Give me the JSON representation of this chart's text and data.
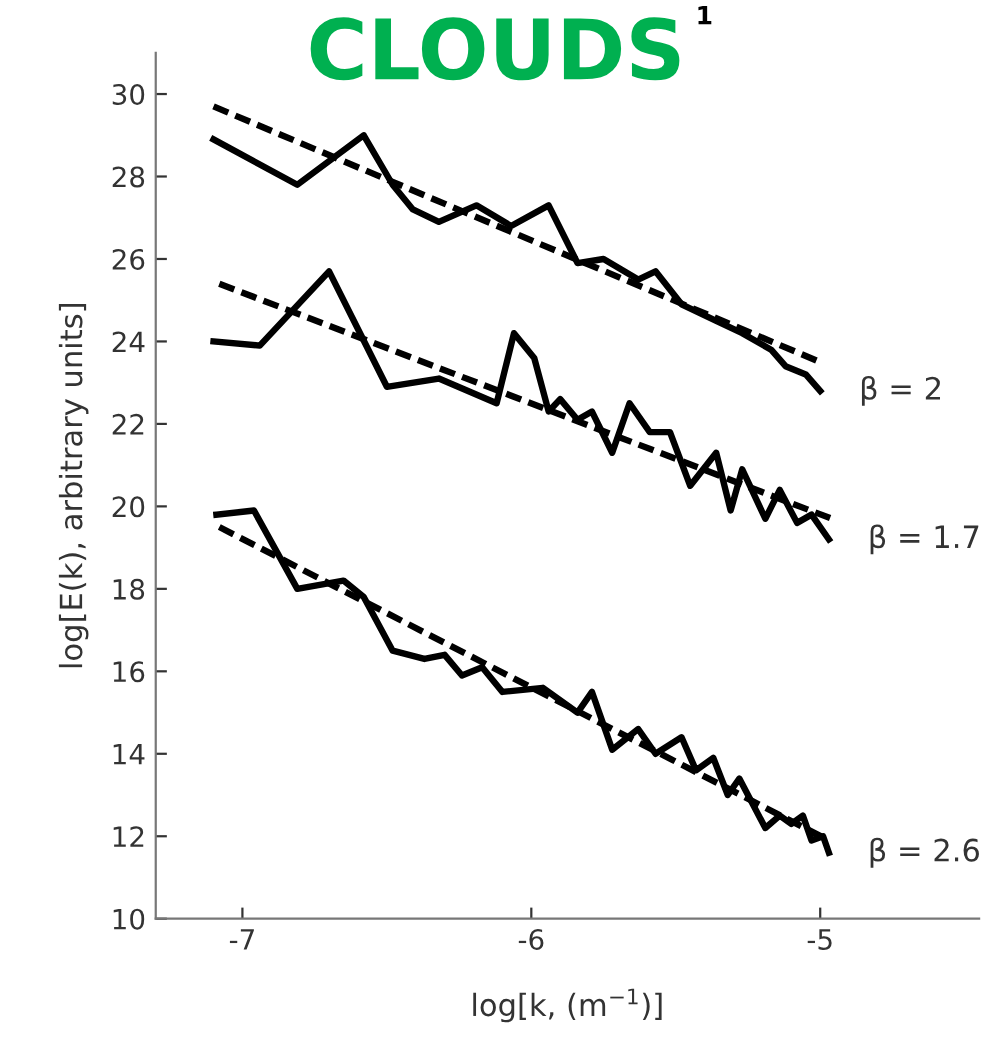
{
  "chart_data": {
    "type": "line",
    "title": "CLOUDS",
    "xlabel": "log[k, (m$^{−1}$)]",
    "ylabel": "log[E(k), arbitrary units]",
    "xlim": [
      -7.3,
      -4.45
    ],
    "ylim": [
      10,
      31
    ],
    "xticks": [
      -7,
      -6,
      -5
    ],
    "yticks": [
      10,
      12,
      14,
      16,
      18,
      20,
      22,
      24,
      26,
      28,
      30
    ],
    "grid": false,
    "legend": false,
    "marker": "none",
    "series": [
      {
        "color": "#000000",
        "line_style": "solid",
        "x": [
          -7.1,
          -6.81,
          -6.58,
          -6.48,
          -6.41,
          -6.32,
          -6.19,
          -6.07,
          -5.94,
          -5.84,
          -5.75,
          -5.63,
          -5.57,
          -5.48,
          -5.36,
          -5.27,
          -5.17,
          -5.12,
          -5.05,
          -5.0
        ],
        "values": [
          28.9,
          27.8,
          29.0,
          27.8,
          27.2,
          26.9,
          27.3,
          26.8,
          27.3,
          25.9,
          26.0,
          25.5,
          25.7,
          24.9,
          24.5,
          24.2,
          23.8,
          23.4,
          23.2,
          22.8
        ]
      },
      {
        "color": "#000000",
        "line_style": "dashed",
        "x": [
          -7.1,
          -5.0
        ],
        "values": [
          29.7,
          23.5
        ]
      },
      {
        "color": "#000000",
        "line_style": "solid",
        "x": [
          -7.1,
          -6.94,
          -6.7,
          -6.5,
          -6.32,
          -6.12,
          -6.06,
          -5.99,
          -5.94,
          -5.9,
          -5.84,
          -5.79,
          -5.72,
          -5.66,
          -5.59,
          -5.52,
          -5.45,
          -5.36,
          -5.31,
          -5.27,
          -5.19,
          -5.14,
          -5.08,
          -5.03,
          -4.97
        ],
        "values": [
          24.0,
          23.9,
          25.7,
          22.9,
          23.1,
          22.5,
          24.2,
          23.6,
          22.3,
          22.6,
          22.1,
          22.3,
          21.3,
          22.5,
          21.8,
          21.8,
          20.5,
          21.3,
          19.9,
          20.9,
          19.7,
          20.4,
          19.6,
          19.8,
          19.2
        ]
      },
      {
        "color": "#000000",
        "line_style": "dashed",
        "x": [
          -7.08,
          -4.96
        ],
        "values": [
          25.4,
          19.7
        ]
      },
      {
        "color": "#000000",
        "line_style": "solid",
        "x": [
          -7.09,
          -6.96,
          -6.81,
          -6.65,
          -6.58,
          -6.48,
          -6.37,
          -6.3,
          -6.24,
          -6.17,
          -6.1,
          -5.96,
          -5.84,
          -5.79,
          -5.72,
          -5.63,
          -5.57,
          -5.48,
          -5.43,
          -5.37,
          -5.32,
          -5.28,
          -5.19,
          -5.14,
          -5.1,
          -5.06,
          -5.03,
          -4.99,
          -4.97
        ],
        "values": [
          19.8,
          19.9,
          18.0,
          18.2,
          17.8,
          16.5,
          16.3,
          16.4,
          15.9,
          16.1,
          15.5,
          15.6,
          15.0,
          15.5,
          14.1,
          14.6,
          14.0,
          14.4,
          13.6,
          13.9,
          13.0,
          13.4,
          12.2,
          12.5,
          12.3,
          12.5,
          11.9,
          12.0,
          11.6
        ]
      },
      {
        "color": "#000000",
        "line_style": "dashed",
        "x": [
          -7.08,
          -4.97
        ],
        "values": [
          19.5,
          11.9
        ]
      }
    ],
    "annotations": [
      "1",
      "β = 2",
      "β = 1.7",
      "β = 2.6"
    ]
  }
}
